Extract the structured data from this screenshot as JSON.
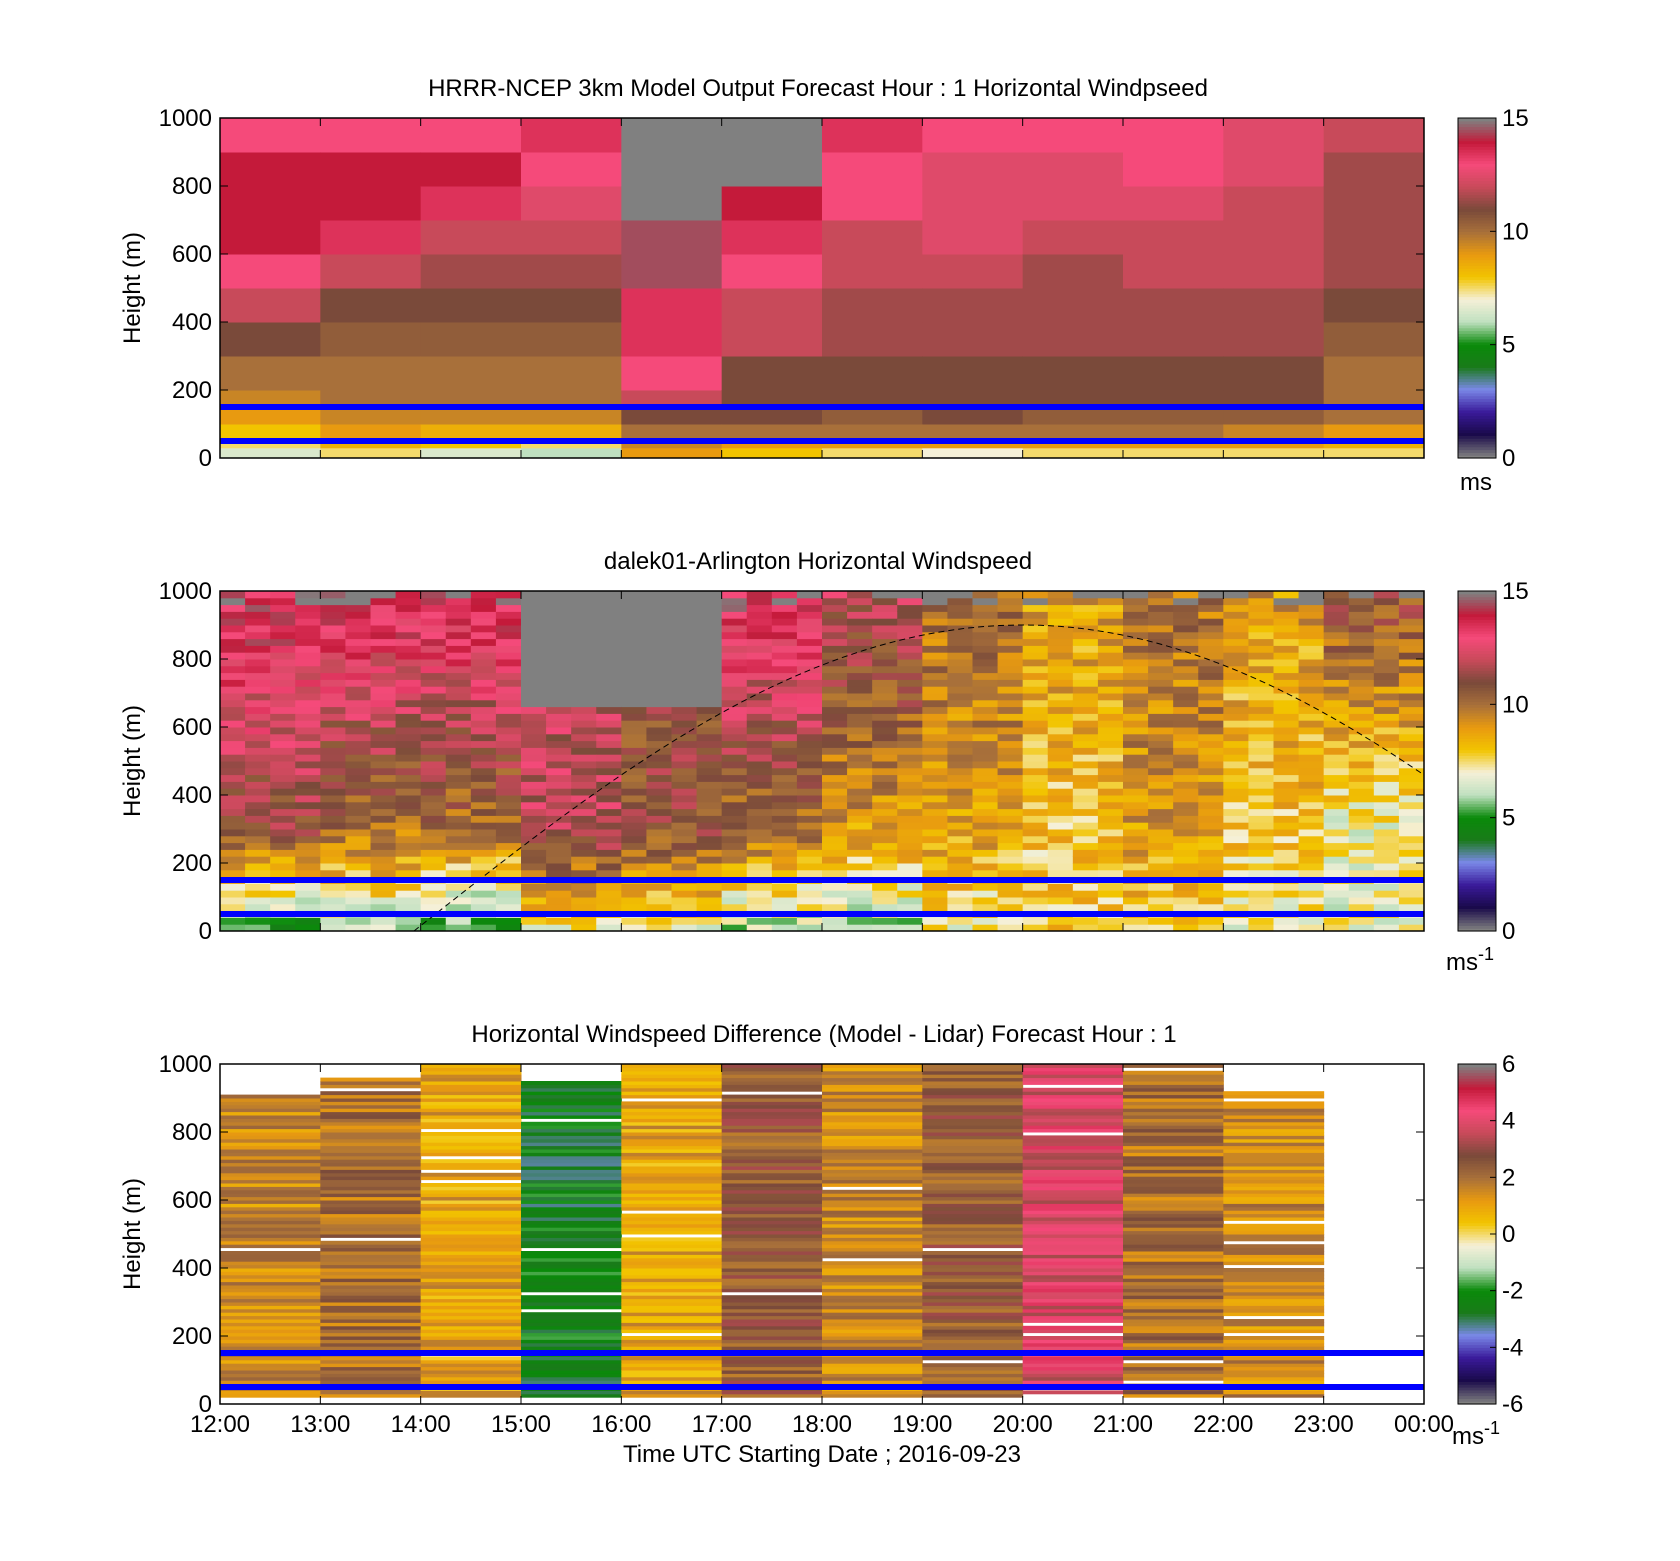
{
  "figure": {
    "xlabel": "Time UTC  Starting Date ; 2016-09-23",
    "x_ticks": [
      "12:00",
      "13:00",
      "14:00",
      "15:00",
      "16:00",
      "17:00",
      "18:00",
      "19:00",
      "20:00",
      "21:00",
      "22:00",
      "23:00",
      "00:00"
    ]
  },
  "colors": {
    "reference_line": "#0000ff",
    "missing_data": "#808080",
    "speed_scale": [
      "#808080",
      "#1a0a4a",
      "#3a1a9a",
      "#7a88e8",
      "#1a7a1a",
      "#0a8a0a",
      "#bfe0c0",
      "#f5f0d8",
      "#f2c400",
      "#e89a10",
      "#a8703a",
      "#7a4a3a",
      "#c84a5a",
      "#f54a7a",
      "#c41a3a",
      "#808080"
    ],
    "diff_scale": [
      "#808080",
      "#1a0a4a",
      "#3a1a9a",
      "#7a88e8",
      "#1a7a1a",
      "#0a8a0a",
      "#bfe0c0",
      "#f5f0d8",
      "#f2c400",
      "#e89a10",
      "#a8703a",
      "#7a4a3a",
      "#c84a5a",
      "#f54a7a",
      "#c41a3a",
      "#808080"
    ]
  },
  "chart_data": [
    {
      "type": "heatmap",
      "title": "HRRR-NCEP 3km Model Output   Forecast Hour : 1 Horizontal Windpseed",
      "ylabel": "Height (m)",
      "xlabel": "",
      "x_categories": [
        "12:00",
        "13:00",
        "14:00",
        "15:00",
        "16:00",
        "17:00",
        "18:00",
        "19:00",
        "20:00",
        "21:00",
        "22:00",
        "23:00"
      ],
      "xlim": [
        "12:00",
        "00:00"
      ],
      "ylim": [
        0,
        1000
      ],
      "y_ticks": [
        0,
        200,
        400,
        600,
        800,
        1000
      ],
      "reference_lines_m": [
        50,
        150
      ],
      "colorbar": {
        "range": [
          0,
          15
        ],
        "ticks": [
          0,
          5,
          10,
          15
        ],
        "unit": "ms"
      },
      "height_bins_m": [
        [
          0,
          30
        ],
        [
          30,
          55
        ],
        [
          55,
          100
        ],
        [
          100,
          150
        ],
        [
          150,
          200
        ],
        [
          200,
          300
        ],
        [
          300,
          400
        ],
        [
          400,
          500
        ],
        [
          500,
          600
        ],
        [
          600,
          700
        ],
        [
          700,
          800
        ],
        [
          800,
          900
        ],
        [
          900,
          1000
        ]
      ],
      "values_ms": [
        [
          6.5,
          7.5,
          8,
          9,
          9.5,
          10,
          11,
          12,
          13,
          14,
          14,
          14,
          13
        ],
        [
          7.5,
          8.5,
          9,
          9.5,
          10,
          10,
          10.5,
          11,
          12,
          13.5,
          14,
          14,
          13
        ],
        [
          6.5,
          8,
          8.5,
          9.5,
          10,
          10,
          10.5,
          11,
          11.5,
          12,
          13.5,
          14,
          13
        ],
        [
          6,
          7.5,
          8.5,
          9.5,
          10,
          10,
          10.5,
          11,
          11.5,
          12,
          12.5,
          13,
          13.5
        ],
        [
          9,
          9.5,
          10,
          11,
          12,
          13,
          13.5,
          13.5,
          14.5,
          14.5,
          15,
          null,
          null
        ],
        [
          8,
          9,
          10,
          11,
          11,
          11,
          12,
          12,
          13,
          13.5,
          14,
          15,
          null
        ],
        [
          7.5,
          9,
          10,
          10.5,
          11,
          11,
          11.5,
          11.5,
          12,
          12,
          13,
          13,
          13.5
        ],
        [
          7,
          9,
          10,
          11,
          11,
          11,
          11.5,
          11.5,
          12,
          12.5,
          12.5,
          12.5,
          13
        ],
        [
          7.5,
          9,
          10,
          10.5,
          11,
          11,
          11.5,
          11.5,
          11.5,
          12,
          12.5,
          12.5,
          13
        ],
        [
          7.5,
          9,
          10,
          10.5,
          11,
          11,
          11.5,
          11.5,
          12,
          12,
          12.5,
          13,
          13
        ],
        [
          7.5,
          9,
          9.5,
          10.5,
          11,
          11,
          11.5,
          11.5,
          12,
          12,
          12,
          12.5,
          12.5
        ],
        [
          7.5,
          8.5,
          9,
          10,
          10,
          10,
          10.5,
          11,
          11.5,
          11.5,
          11.5,
          11.5,
          12
        ]
      ]
    },
    {
      "type": "heatmap",
      "title": "dalek01-Arlington  Horizontal Windspeed",
      "ylabel": "Height (m)",
      "xlabel": "",
      "xlim": [
        "12:00",
        "00:00"
      ],
      "ylim": [
        0,
        1000
      ],
      "y_ticks": [
        0,
        200,
        400,
        600,
        800,
        1000
      ],
      "reference_lines_m": [
        50,
        150
      ],
      "colorbar": {
        "range": [
          0,
          15
        ],
        "ticks": [
          0,
          5,
          10,
          15
        ],
        "unit": "ms-1"
      },
      "time_bin_minutes": 15,
      "height_bin_m": 20,
      "overlay_curve": {
        "style": "dashed",
        "x_start": "13:56",
        "x_peak": "20:00",
        "peak_height_m": 900,
        "x_end": "00:00",
        "end_height_m": 425
      },
      "hourly_profile_summary": [
        {
          "hour": "12:00",
          "near_surface_ms": 5,
          "mid_level_ms": 11,
          "top_ms": 14
        },
        {
          "hour": "13:00",
          "near_surface_ms": 6,
          "mid_level_ms": 10,
          "top_ms": 14
        },
        {
          "hour": "14:00",
          "near_surface_ms": 5,
          "mid_level_ms": 10,
          "top_ms": 14
        },
        {
          "hour": "15:00",
          "near_surface_ms": 7,
          "mid_level_ms": 12,
          "top_ms": null
        },
        {
          "hour": "16:00",
          "near_surface_ms": 7,
          "mid_level_ms": 11,
          "top_ms": null
        },
        {
          "hour": "17:00",
          "near_surface_ms": 6,
          "mid_level_ms": 10,
          "top_ms": 14
        },
        {
          "hour": "18:00",
          "near_surface_ms": 6,
          "mid_level_ms": 9,
          "top_ms": 12
        },
        {
          "hour": "19:00",
          "near_surface_ms": 7,
          "mid_level_ms": 9,
          "top_ms": 10
        },
        {
          "hour": "20:00",
          "near_surface_ms": 8,
          "mid_level_ms": 8,
          "top_ms": 9
        },
        {
          "hour": "21:00",
          "near_surface_ms": 8,
          "mid_level_ms": 9,
          "top_ms": 10
        },
        {
          "hour": "22:00",
          "near_surface_ms": 7,
          "mid_level_ms": 8,
          "top_ms": 9
        },
        {
          "hour": "23:00",
          "near_surface_ms": 7,
          "mid_level_ms": 7,
          "top_ms": 11
        }
      ]
    },
    {
      "type": "heatmap",
      "title": "Horizontal Windspeed Difference (Model - Lidar) Forecast Hour : 1",
      "ylabel": "Height (m)",
      "xlabel": "Time UTC  Starting Date ; 2016-09-23",
      "xlim": [
        "12:00",
        "00:00"
      ],
      "ylim": [
        0,
        1000
      ],
      "y_ticks": [
        0,
        200,
        400,
        600,
        800,
        1000
      ],
      "reference_lines_m": [
        50,
        150
      ],
      "colorbar": {
        "range": [
          -6,
          6
        ],
        "ticks": [
          -6,
          -4,
          -2,
          0,
          2,
          4,
          6
        ],
        "unit": "ms-1"
      },
      "hourly_mean_difference_ms": [
        {
          "hour": "12:00",
          "value": 1.5,
          "top_m": 905
        },
        {
          "hour": "13:00",
          "value": 2.0,
          "top_m": 960
        },
        {
          "hour": "14:00",
          "value": 1.0,
          "top_m": 1000
        },
        {
          "hour": "15:00",
          "value": -2.5,
          "top_m": 950
        },
        {
          "hour": "16:00",
          "value": 1.0,
          "top_m": 1000
        },
        {
          "hour": "17:00",
          "value": 2.5,
          "top_m": 1000
        },
        {
          "hour": "18:00",
          "value": 1.5,
          "top_m": 1000
        },
        {
          "hour": "19:00",
          "value": 2.5,
          "top_m": 1000
        },
        {
          "hour": "20:00",
          "value": 4.0,
          "top_m": 1000
        },
        {
          "hour": "21:00",
          "value": 2.0,
          "top_m": 1000
        },
        {
          "hour": "22:00",
          "value": 1.5,
          "top_m": 920
        },
        {
          "hour": "23:00",
          "value": null,
          "top_m": null
        }
      ]
    }
  ]
}
